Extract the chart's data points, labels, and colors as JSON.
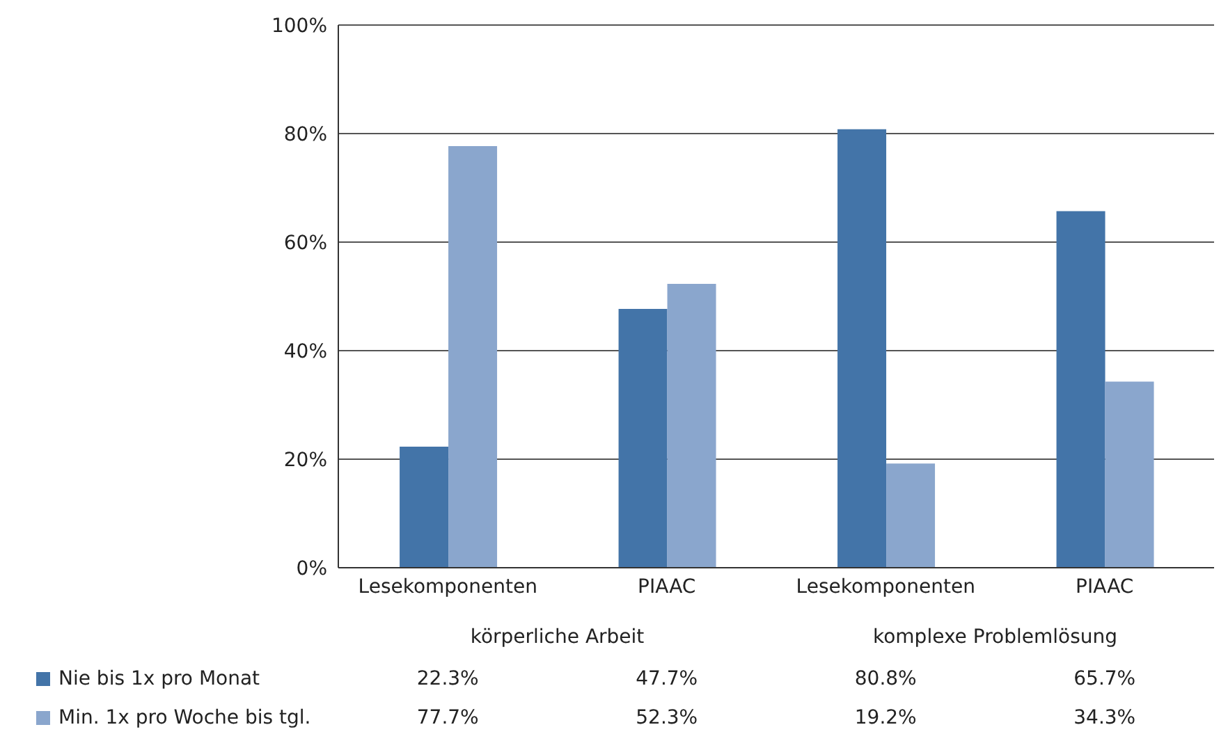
{
  "chart_data": {
    "type": "bar",
    "categories": [
      "Lesekomponenten",
      "PIAAC",
      "Lesekomponenten",
      "PIAAC"
    ],
    "annotations": [
      "körperliche Arbeit",
      "komplexe Problemlösung"
    ],
    "series": [
      {
        "name": "Nie bis 1x pro Monat",
        "color": "#4374a8",
        "values": [
          22.3,
          47.7,
          80.8,
          65.7
        ],
        "value_labels": [
          "22.3%",
          "47.7%",
          "80.8%",
          "65.7%"
        ]
      },
      {
        "name": "Min. 1x pro Woche bis tgl.",
        "color": "#8aa6cd",
        "values": [
          77.7,
          52.3,
          19.2,
          34.3
        ],
        "value_labels": [
          "77.7%",
          "52.3%",
          "19.2%",
          "34.3%"
        ]
      }
    ],
    "ylim": [
      0,
      100
    ],
    "yticks": [
      {
        "value": 0,
        "label": "0%"
      },
      {
        "value": 20,
        "label": "20%"
      },
      {
        "value": 40,
        "label": "40%"
      },
      {
        "value": 60,
        "label": "60%"
      },
      {
        "value": 80,
        "label": "80%"
      },
      {
        "value": 100,
        "label": "100%"
      }
    ],
    "grid": "y",
    "legend": "bottom"
  }
}
